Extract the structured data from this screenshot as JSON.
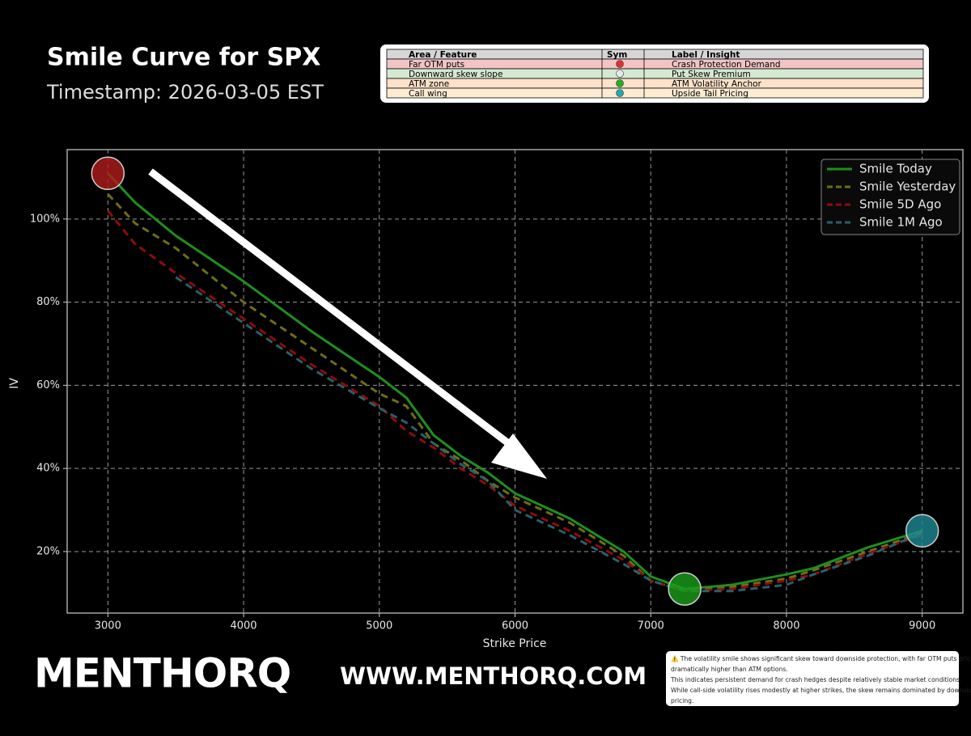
{
  "chart_data": {
    "type": "line",
    "title": "Smile Curve for SPX",
    "subtitle": "Timestamp: 2026-03-05 EST",
    "x_label": "Strike Price",
    "y_label": "IV",
    "x": [
      3000,
      3200,
      3500,
      4000,
      4500,
      5000,
      5200,
      5400,
      5600,
      5800,
      6000,
      6400,
      6800,
      7000,
      7250,
      7600,
      8000,
      8200,
      8600,
      9000
    ],
    "series": [
      {
        "name": "Smile Today",
        "color": "#1e8f1e",
        "dash": false,
        "values": [
          111,
          104,
          96,
          85,
          73,
          62,
          57,
          48,
          43,
          39,
          34,
          28,
          20,
          14,
          11,
          12,
          14.5,
          16,
          21,
          25
        ]
      },
      {
        "name": "Smile Yesterday",
        "color": "#6e6e12",
        "dash": true,
        "values": [
          106,
          99,
          93,
          80,
          69,
          58,
          55,
          46,
          42,
          37,
          33,
          27,
          19,
          13,
          10.5,
          11.5,
          13.5,
          15.5,
          20,
          24.5
        ]
      },
      {
        "name": "Smile 5D Ago",
        "color": "#8e0c0c",
        "dash": true,
        "values": [
          102,
          94,
          87,
          76,
          65,
          55,
          49,
          45,
          40,
          36,
          31,
          25,
          18,
          13,
          10.5,
          11,
          13,
          14.5,
          19.5,
          24
        ]
      },
      {
        "name": "Smile 1M Ago",
        "color": "#2b5f6b",
        "dash": true,
        "values": [
          null,
          null,
          86,
          75,
          64,
          54.5,
          51,
          46,
          41,
          37,
          30,
          24,
          17,
          13,
          10.5,
          10.5,
          12,
          14.5,
          19,
          24.5
        ]
      }
    ],
    "markers": [
      {
        "x": 3000,
        "y": 111,
        "color": "#b01c1c"
      },
      {
        "x": 7250,
        "y": 11,
        "color": "#1a9e1a"
      },
      {
        "x": 9000,
        "y": 25,
        "color": "#1e8a94"
      }
    ],
    "xlim": [
      2700,
      9300
    ],
    "xticks": [
      3000,
      4000,
      5000,
      6000,
      7000,
      8000,
      9000
    ],
    "ylim": [
      5.2,
      116.7
    ],
    "yticks": [
      {
        "value": 20,
        "label": "20%"
      },
      {
        "value": 40,
        "label": "40%"
      },
      {
        "value": 60,
        "label": "60%"
      },
      {
        "value": 80,
        "label": "80%"
      },
      {
        "value": 100,
        "label": "100%"
      }
    ],
    "grid": true,
    "legend": "upper right"
  },
  "insight_table": {
    "header": [
      "Area / Feature",
      "Sym",
      "Label / Insight"
    ],
    "rows": [
      {
        "feature": "Far OTM puts",
        "sym_color": "#e03030",
        "insight": "Crash Protection Demand",
        "row_color": "#f2c4c4"
      },
      {
        "feature": "Downward skew slope",
        "sym_color": "#e8e8e8",
        "insight": "Put Skew Premium",
        "row_color": "#d4e9d2"
      },
      {
        "feature": "ATM zone",
        "sym_color": "#22b022",
        "insight": "ATM Volatility Anchor",
        "row_color": "#fde1c8"
      },
      {
        "feature": "Call wing",
        "sym_color": "#22aab0",
        "insight": "Upside Tail Pricing",
        "row_color": "#fdebd2"
      }
    ]
  },
  "branding": {
    "logo": "MENTHORQ",
    "url": "WWW.MENTHORQ.COM"
  },
  "note": {
    "lines": [
      "⚠️ The volatility smile shows significant skew toward downside protection, with far OTM puts priced",
      "dramatically higher than ATM options.",
      "This indicates persistent demand for crash hedges despite relatively stable market conditions.",
      "While call-side volatility rises modestly at higher strikes, the skew remains dominated by downside tail risk",
      "pricing."
    ]
  }
}
